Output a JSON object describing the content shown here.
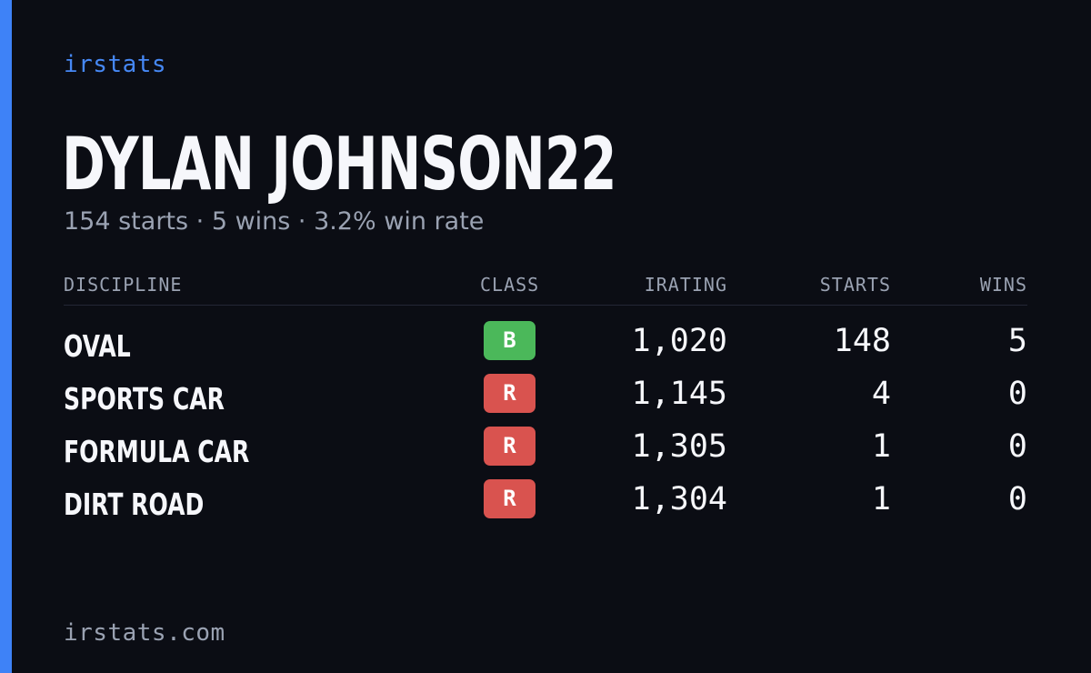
{
  "brand": "irstats",
  "player": {
    "name": "DYLAN JOHNSON22",
    "summary": "154 starts · 5 wins · 3.2% win rate"
  },
  "table": {
    "headers": {
      "discipline": "DISCIPLINE",
      "class": "CLASS",
      "irating": "IRATING",
      "starts": "STARTS",
      "wins": "WINS"
    },
    "rows": [
      {
        "discipline": "OVAL",
        "class": "B",
        "class_color": "#4bb85a",
        "irating": "1,020",
        "starts": "148",
        "wins": "5"
      },
      {
        "discipline": "SPORTS CAR",
        "class": "R",
        "class_color": "#d9534f",
        "irating": "1,145",
        "starts": "4",
        "wins": "0"
      },
      {
        "discipline": "FORMULA CAR",
        "class": "R",
        "class_color": "#d9534f",
        "irating": "1,305",
        "starts": "1",
        "wins": "0"
      },
      {
        "discipline": "DIRT ROAD",
        "class": "R",
        "class_color": "#d9534f",
        "irating": "1,304",
        "starts": "1",
        "wins": "0"
      }
    ]
  },
  "footer": "irstats.com",
  "colors": {
    "accent": "#3e82f7",
    "background": "#0b0d14"
  }
}
